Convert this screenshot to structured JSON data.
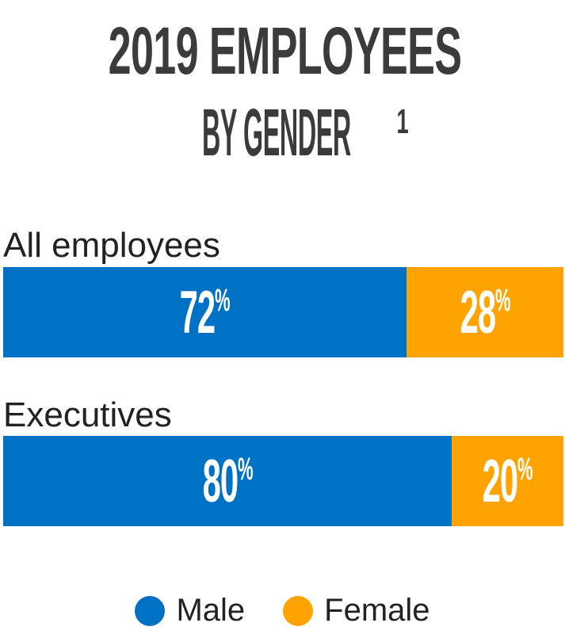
{
  "chart_data": {
    "type": "bar",
    "stacked": true,
    "orientation": "horizontal",
    "title_line1": "2019 EMPLOYEES",
    "title_line2": "BY GENDER",
    "title_footnote": "1",
    "categories": [
      "All employees",
      "Executives"
    ],
    "series": [
      {
        "name": "Male",
        "color": "#0072C6",
        "values": [
          72,
          80
        ],
        "labels": [
          "72",
          "80"
        ]
      },
      {
        "name": "Female",
        "color": "#FFA300",
        "values": [
          28,
          20
        ],
        "labels": [
          "28",
          "20"
        ]
      }
    ],
    "unit": "%",
    "legend": [
      "Male",
      "Female"
    ],
    "legend_position": "bottom"
  }
}
